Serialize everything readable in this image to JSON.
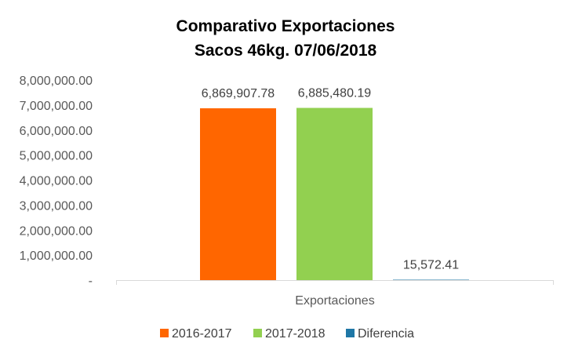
{
  "chart_data": {
    "type": "bar",
    "title_lines": [
      "Comparativo Exportaciones",
      "Sacos 46kg. 07/06/2018"
    ],
    "categories": [
      "Exportaciones"
    ],
    "series": [
      {
        "name": "2016-2017",
        "values": [
          6869907.78
        ],
        "label": "6,869,907.78",
        "color": "#FF6600"
      },
      {
        "name": "2017-2018",
        "values": [
          6885480.19
        ],
        "label": "6,885,480.19",
        "color": "#92D050"
      },
      {
        "name": "Diferencia",
        "values": [
          15572.41
        ],
        "label": "15,572.41",
        "color": "#1F77A6"
      }
    ],
    "ylim": [
      0,
      8000000
    ],
    "yticks": [
      0,
      1000000,
      2000000,
      3000000,
      4000000,
      5000000,
      6000000,
      7000000,
      8000000
    ],
    "ytick_labels": [
      "-",
      "1,000,000.00",
      "2,000,000.00",
      "3,000,000.00",
      "4,000,000.00",
      "5,000,000.00",
      "6,000,000.00",
      "7,000,000.00",
      "8,000,000.00"
    ],
    "grid": false,
    "legend_position": "bottom",
    "axis_color": "#D9D9D9"
  }
}
